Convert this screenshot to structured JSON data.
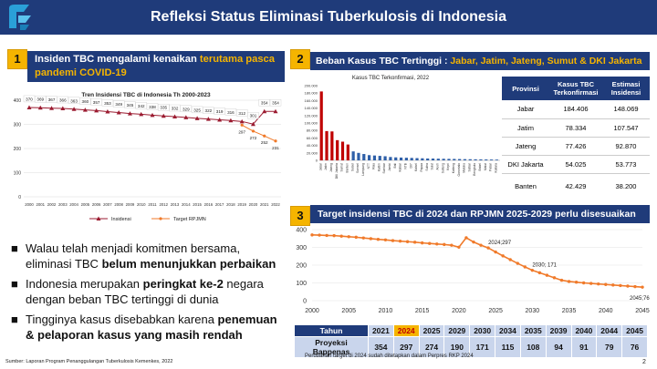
{
  "header": {
    "title": "Refleksi Status Eliminasi Tuberkulosis di Indonesia"
  },
  "panel1": {
    "number": "1",
    "title_part1": "Insiden TBC mengalami kenaikan ",
    "title_part2": "terutama pasca",
    "title_part3": "pandemi COVID-19"
  },
  "panel2": {
    "number": "2",
    "title_part1": "Beban Kasus TBC Tertinggi : ",
    "title_part2": "Jabar, Jatim, Jateng, Sumut & DKI Jakarta"
  },
  "panel3": {
    "number": "3",
    "title": "Target insidensi TBC di 2024 dan RPJMN 2025-2029 perlu disesuaikan"
  },
  "bullets": [
    {
      "pre": "Walau telah menjadi komitmen bersama, eliminasi TBC ",
      "bold": "belum menunjukkan perbaikan",
      "post": ""
    },
    {
      "pre": "Indonesia merupakan ",
      "bold": "peringkat ke-2",
      "post": " negara dengan beban TBC tertinggi di dunia"
    },
    {
      "pre": "Tingginya kasus disebabkan karena ",
      "bold": "penemuan & pelaporan kasus yang masih rendah",
      "post": ""
    }
  ],
  "province_table": {
    "headers": [
      "Provinsi",
      "Kasus TBC Terkonfirmasi",
      "Estimasi Insidensi"
    ],
    "rows": [
      [
        "Jabar",
        "184.406",
        "148.069"
      ],
      [
        "Jatim",
        "78.334",
        "107.547"
      ],
      [
        "Jateng",
        "77.426",
        "92.870"
      ],
      [
        "DKI Jakarta",
        "54.025",
        "53.773"
      ],
      [
        "Banten",
        "42.429",
        "38.200"
      ]
    ]
  },
  "projection_table": {
    "row_label_year": "Tahun",
    "row_label_value": "Proyeksi Bappenas",
    "years": [
      "2021",
      "2024",
      "2025",
      "2029",
      "2030",
      "2034",
      "2035",
      "2039",
      "2040",
      "2044",
      "2045"
    ],
    "values": [
      "354",
      "297",
      "274",
      "190",
      "171",
      "115",
      "108",
      "94",
      "91",
      "79",
      "76"
    ],
    "highlight_index": 1
  },
  "footnotes": {
    "source": "Sumber: Laporan Program Penanggulangan Tuberkulosis Kemenkes, 2022",
    "perpres": "Perubahan target di 2024 sudah ditetapkan dalam Perpres RKP 2024",
    "page": "2"
  },
  "colors": {
    "navy": "#1f3b7a",
    "gold": "#f5b400",
    "line_red": "#9b1b30",
    "orange": "#f07a2a",
    "bar_red": "#c00000",
    "bar_blue": "#2e5fa8"
  },
  "chart_data": [
    {
      "type": "line",
      "title": "Tren Insidensi TBC di Indonesia Th 2000-2023",
      "x": [
        "2000",
        "2001",
        "2002",
        "2003",
        "2004",
        "2005",
        "2006",
        "2007",
        "2008",
        "2009",
        "2010",
        "2011",
        "2012",
        "2013",
        "2014",
        "2015",
        "2016",
        "2017",
        "2018",
        "2019",
        "2020",
        "2021",
        "2022"
      ],
      "ylim": [
        0,
        400
      ],
      "yticks": [
        "0",
        "100",
        "200",
        "300",
        "400"
      ],
      "series": [
        {
          "name": "Insidensi",
          "x": [
            "2000",
            "2001",
            "2002",
            "2003",
            "2004",
            "2005",
            "2006",
            "2007",
            "2008",
            "2009",
            "2010",
            "2011",
            "2012",
            "2013",
            "2014",
            "2015",
            "2016",
            "2017",
            "2018",
            "2019",
            "2020",
            "2021",
            "2022"
          ],
          "values": [
            370,
            369,
            367,
            366,
            363,
            360,
            357,
            353,
            349,
            345,
            342,
            338,
            335,
            332,
            329,
            325,
            322,
            319,
            316,
            312,
            301,
            354,
            354
          ]
        },
        {
          "name": "Target RPJMN",
          "x": [
            "2019",
            "2020",
            "2021",
            "2022"
          ],
          "values": [
            297,
            272,
            252,
            231
          ]
        }
      ]
    },
    {
      "type": "bar",
      "title": "Kasus TBC Terkonfirmasi, 2022",
      "ylim": [
        0,
        200000
      ],
      "yticks": [
        "0",
        "20.000",
        "40.000",
        "60.000",
        "80.000",
        "100.000",
        "120.000",
        "140.000",
        "160.000",
        "180.000",
        "200.000"
      ],
      "categories": [
        "Jabar",
        "Jatim",
        "Jateng",
        "DKI Jakarta",
        "Sumut",
        "Banten",
        "Sulsel",
        "Sumsel",
        "Lampung",
        "NTT",
        "Riau",
        "Kaltim",
        "Sumbar",
        "Jambi",
        "Bali",
        "Kalbar",
        "NTB",
        "DIY",
        "Kalsel",
        "Papua",
        "Sultra",
        "Sulut",
        "Aceh",
        "Sulteng",
        "Kepri",
        "Kalteng",
        "Gorontalo",
        "Maluku",
        "Sulbar",
        "Bengkulu",
        "Babel",
        "Malut",
        "Pabar",
        "Kaltara"
      ],
      "values": [
        184406,
        78334,
        77426,
        54025,
        50000,
        42429,
        24000,
        20000,
        17000,
        14000,
        13000,
        12000,
        11000,
        9000,
        8000,
        7500,
        7000,
        6500,
        6000,
        5500,
        5000,
        4800,
        4500,
        4200,
        4000,
        3800,
        3500,
        3200,
        3000,
        2800,
        2600,
        2400,
        2200,
        2000
      ],
      "highlight_count": 6
    },
    {
      "type": "line",
      "x": [
        2000,
        2001,
        2002,
        2003,
        2004,
        2005,
        2006,
        2007,
        2008,
        2009,
        2010,
        2011,
        2012,
        2013,
        2014,
        2015,
        2016,
        2017,
        2018,
        2019,
        2020,
        2021,
        2022,
        2023,
        2024,
        2025,
        2026,
        2027,
        2028,
        2029,
        2030,
        2031,
        2032,
        2033,
        2034,
        2035,
        2036,
        2037,
        2038,
        2039,
        2040,
        2041,
        2042,
        2043,
        2044,
        2045
      ],
      "xticks": [
        "2000",
        "2005",
        "2010",
        "2015",
        "2020",
        "2025",
        "2030",
        "2035",
        "2040",
        "2045"
      ],
      "ylim": [
        0,
        400
      ],
      "yticks": [
        "0",
        "100",
        "200",
        "300",
        "400"
      ],
      "series": [
        {
          "name": "",
          "values": [
            370,
            369,
            367,
            366,
            363,
            360,
            357,
            353,
            349,
            345,
            342,
            338,
            335,
            332,
            329,
            325,
            322,
            319,
            316,
            312,
            301,
            354,
            330,
            312,
            297,
            274,
            252,
            231,
            210,
            190,
            171,
            157,
            143,
            129,
            115,
            108,
            104,
            100,
            97,
            94,
            91,
            88,
            85,
            82,
            79,
            76
          ]
        }
      ],
      "annotations": [
        {
          "x": 2024,
          "y": 297,
          "text": "2024;297"
        },
        {
          "x": 2030,
          "y": 171,
          "text": "2030; 171"
        },
        {
          "x": 2045,
          "y": 76,
          "text": "2045;76"
        }
      ]
    }
  ]
}
